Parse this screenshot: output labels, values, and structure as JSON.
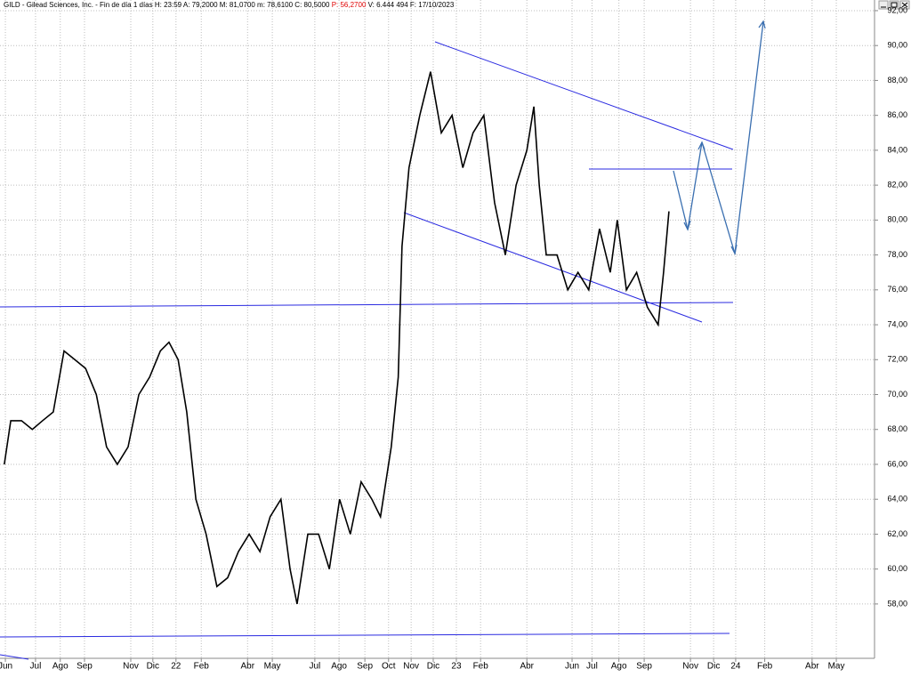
{
  "header": {
    "left": "GILD - Gilead Sciences, Inc. - Fin de día 1 días  H: 23:59  A: 79,2000  M: 81,0700  m: 78,6100  C: 80,5000",
    "p": "P: 56,2700",
    "right": "V: 6.444 494  F: 17/10/2023"
  },
  "chart_data": {
    "type": "line",
    "color": "#000000",
    "grid": true,
    "x": [
      0.8,
      2.0,
      4.0,
      6.0,
      7.9,
      9.9,
      11.9,
      13.9,
      15.9,
      17.9,
      19.8,
      21.8,
      23.8,
      25.8,
      27.8,
      29.8,
      31.4,
      33.1,
      34.7,
      36.4,
      38.3,
      40.3,
      42.3,
      44.3,
      46.3,
      48.3,
      50.2,
      52.2,
      53.9,
      55.2,
      57.2,
      59.2,
      61.2,
      63.1,
      65.1,
      67.1,
      69.1,
      70.7,
      72.7,
      74.0,
      74.7,
      76.0,
      78.0,
      80.0,
      82.0,
      84.0,
      86.0,
      87.9,
      89.9,
      91.9,
      93.9,
      95.9,
      97.9,
      99.2,
      100.2,
      101.5,
      103.5,
      105.5,
      107.4,
      109.4,
      111.4,
      113.4,
      114.7,
      116.4,
      118.3,
      120.3,
      122.3,
      123.3,
      124.3
    ],
    "values": [
      66,
      68.5,
      68.5,
      68,
      68.5,
      69,
      72.5,
      72,
      71.5,
      70,
      67,
      66,
      67,
      70,
      71,
      72.5,
      73,
      72,
      69,
      64,
      62,
      59,
      59.5,
      61,
      62,
      61,
      63,
      64,
      60,
      58,
      62,
      62,
      60,
      64,
      62,
      65,
      64,
      63,
      67,
      71,
      78.5,
      83,
      86,
      88.5,
      85,
      86,
      83,
      85,
      86,
      81,
      78,
      82,
      84,
      86.5,
      82,
      78,
      78,
      76,
      77,
      76,
      79.5,
      77,
      80,
      76,
      77,
      75,
      74,
      77,
      80.5
    ],
    "xlim": [
      0,
      162.5
    ],
    "xticks": [
      {
        "value": 1,
        "label": "Jun"
      },
      {
        "value": 6.6,
        "label": "Jul"
      },
      {
        "value": 11.2,
        "label": "Ago"
      },
      {
        "value": 15.7,
        "label": "Sep"
      },
      {
        "value": 24.3,
        "label": "Nov"
      },
      {
        "value": 28.4,
        "label": "Dic"
      },
      {
        "value": 32.7,
        "label": "22"
      },
      {
        "value": 37.4,
        "label": "Feb"
      },
      {
        "value": 46,
        "label": "Abr"
      },
      {
        "value": 50.6,
        "label": "May"
      },
      {
        "value": 58.5,
        "label": "Jul"
      },
      {
        "value": 63,
        "label": "Ago"
      },
      {
        "value": 67.8,
        "label": "Sep"
      },
      {
        "value": 72.2,
        "label": "Oct"
      },
      {
        "value": 76.4,
        "label": "Nov"
      },
      {
        "value": 80.5,
        "label": "Dic"
      },
      {
        "value": 84.8,
        "label": "23"
      },
      {
        "value": 89.3,
        "label": "Feb"
      },
      {
        "value": 97.9,
        "label": "Abr"
      },
      {
        "value": 106.3,
        "label": "Jun"
      },
      {
        "value": 110,
        "label": "Jul"
      },
      {
        "value": 115,
        "label": "Ago"
      },
      {
        "value": 119.7,
        "label": "Sep"
      },
      {
        "value": 128.3,
        "label": "Nov"
      },
      {
        "value": 132.6,
        "label": "Dic"
      },
      {
        "value": 136.7,
        "label": "24"
      },
      {
        "value": 142.1,
        "label": "Feb"
      },
      {
        "value": 150.9,
        "label": "Abr"
      },
      {
        "value": 155.4,
        "label": "May"
      }
    ],
    "ylim": [
      55.14,
      92.61
    ],
    "yticks": [
      {
        "value": 92,
        "label": "92,00"
      },
      {
        "value": 90,
        "label": "90,00"
      },
      {
        "value": 88,
        "label": "88,00"
      },
      {
        "value": 86,
        "label": "86,00"
      },
      {
        "value": 84,
        "label": "84,00"
      },
      {
        "value": 82,
        "label": "82,00"
      },
      {
        "value": 80,
        "label": "80,00"
      },
      {
        "value": 78,
        "label": "78,00"
      },
      {
        "value": 76,
        "label": "76,00"
      },
      {
        "value": 74,
        "label": "74,00"
      },
      {
        "value": 72,
        "label": "72,00"
      },
      {
        "value": 70,
        "label": "70,00"
      },
      {
        "value": 68,
        "label": "68,00"
      },
      {
        "value": 66,
        "label": "66,00"
      },
      {
        "value": 64,
        "label": "64,00"
      },
      {
        "value": 62,
        "label": "62,00"
      },
      {
        "value": 60,
        "label": "60,00"
      },
      {
        "value": 58,
        "label": "58,00"
      }
    ]
  }
}
